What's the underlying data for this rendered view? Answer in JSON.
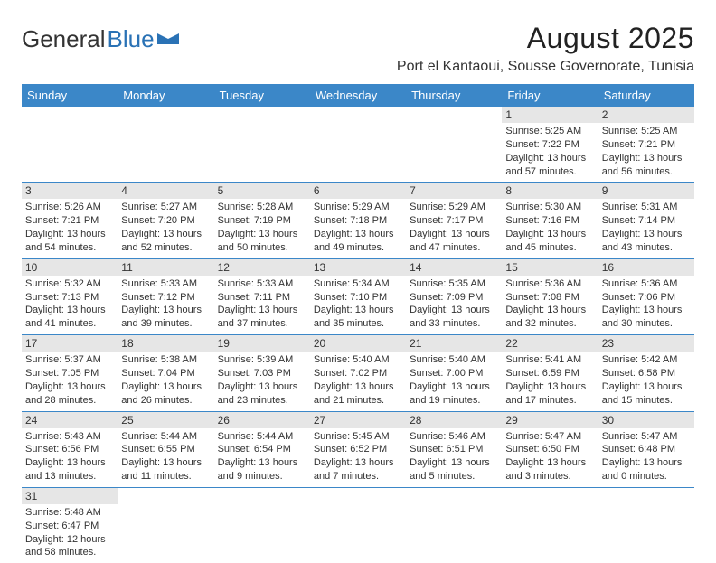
{
  "brand": {
    "part1": "General",
    "part2": "Blue"
  },
  "title": "August 2025",
  "subtitle": "Port el Kantaoui, Sousse Governorate, Tunisia",
  "colors": {
    "header_bg": "#3b87c8",
    "header_fg": "#ffffff",
    "daynum_bg": "#e6e6e6",
    "rule": "#3b87c8",
    "text": "#333333",
    "brand_blue": "#2a72b5"
  },
  "dayHeaders": [
    "Sunday",
    "Monday",
    "Tuesday",
    "Wednesday",
    "Thursday",
    "Friday",
    "Saturday"
  ],
  "weeks": [
    [
      {
        "n": "",
        "sunrise": "",
        "sunset": "",
        "daylight": ""
      },
      {
        "n": "",
        "sunrise": "",
        "sunset": "",
        "daylight": ""
      },
      {
        "n": "",
        "sunrise": "",
        "sunset": "",
        "daylight": ""
      },
      {
        "n": "",
        "sunrise": "",
        "sunset": "",
        "daylight": ""
      },
      {
        "n": "",
        "sunrise": "",
        "sunset": "",
        "daylight": ""
      },
      {
        "n": "1",
        "sunrise": "Sunrise: 5:25 AM",
        "sunset": "Sunset: 7:22 PM",
        "daylight": "Daylight: 13 hours and 57 minutes."
      },
      {
        "n": "2",
        "sunrise": "Sunrise: 5:25 AM",
        "sunset": "Sunset: 7:21 PM",
        "daylight": "Daylight: 13 hours and 56 minutes."
      }
    ],
    [
      {
        "n": "3",
        "sunrise": "Sunrise: 5:26 AM",
        "sunset": "Sunset: 7:21 PM",
        "daylight": "Daylight: 13 hours and 54 minutes."
      },
      {
        "n": "4",
        "sunrise": "Sunrise: 5:27 AM",
        "sunset": "Sunset: 7:20 PM",
        "daylight": "Daylight: 13 hours and 52 minutes."
      },
      {
        "n": "5",
        "sunrise": "Sunrise: 5:28 AM",
        "sunset": "Sunset: 7:19 PM",
        "daylight": "Daylight: 13 hours and 50 minutes."
      },
      {
        "n": "6",
        "sunrise": "Sunrise: 5:29 AM",
        "sunset": "Sunset: 7:18 PM",
        "daylight": "Daylight: 13 hours and 49 minutes."
      },
      {
        "n": "7",
        "sunrise": "Sunrise: 5:29 AM",
        "sunset": "Sunset: 7:17 PM",
        "daylight": "Daylight: 13 hours and 47 minutes."
      },
      {
        "n": "8",
        "sunrise": "Sunrise: 5:30 AM",
        "sunset": "Sunset: 7:16 PM",
        "daylight": "Daylight: 13 hours and 45 minutes."
      },
      {
        "n": "9",
        "sunrise": "Sunrise: 5:31 AM",
        "sunset": "Sunset: 7:14 PM",
        "daylight": "Daylight: 13 hours and 43 minutes."
      }
    ],
    [
      {
        "n": "10",
        "sunrise": "Sunrise: 5:32 AM",
        "sunset": "Sunset: 7:13 PM",
        "daylight": "Daylight: 13 hours and 41 minutes."
      },
      {
        "n": "11",
        "sunrise": "Sunrise: 5:33 AM",
        "sunset": "Sunset: 7:12 PM",
        "daylight": "Daylight: 13 hours and 39 minutes."
      },
      {
        "n": "12",
        "sunrise": "Sunrise: 5:33 AM",
        "sunset": "Sunset: 7:11 PM",
        "daylight": "Daylight: 13 hours and 37 minutes."
      },
      {
        "n": "13",
        "sunrise": "Sunrise: 5:34 AM",
        "sunset": "Sunset: 7:10 PM",
        "daylight": "Daylight: 13 hours and 35 minutes."
      },
      {
        "n": "14",
        "sunrise": "Sunrise: 5:35 AM",
        "sunset": "Sunset: 7:09 PM",
        "daylight": "Daylight: 13 hours and 33 minutes."
      },
      {
        "n": "15",
        "sunrise": "Sunrise: 5:36 AM",
        "sunset": "Sunset: 7:08 PM",
        "daylight": "Daylight: 13 hours and 32 minutes."
      },
      {
        "n": "16",
        "sunrise": "Sunrise: 5:36 AM",
        "sunset": "Sunset: 7:06 PM",
        "daylight": "Daylight: 13 hours and 30 minutes."
      }
    ],
    [
      {
        "n": "17",
        "sunrise": "Sunrise: 5:37 AM",
        "sunset": "Sunset: 7:05 PM",
        "daylight": "Daylight: 13 hours and 28 minutes."
      },
      {
        "n": "18",
        "sunrise": "Sunrise: 5:38 AM",
        "sunset": "Sunset: 7:04 PM",
        "daylight": "Daylight: 13 hours and 26 minutes."
      },
      {
        "n": "19",
        "sunrise": "Sunrise: 5:39 AM",
        "sunset": "Sunset: 7:03 PM",
        "daylight": "Daylight: 13 hours and 23 minutes."
      },
      {
        "n": "20",
        "sunrise": "Sunrise: 5:40 AM",
        "sunset": "Sunset: 7:02 PM",
        "daylight": "Daylight: 13 hours and 21 minutes."
      },
      {
        "n": "21",
        "sunrise": "Sunrise: 5:40 AM",
        "sunset": "Sunset: 7:00 PM",
        "daylight": "Daylight: 13 hours and 19 minutes."
      },
      {
        "n": "22",
        "sunrise": "Sunrise: 5:41 AM",
        "sunset": "Sunset: 6:59 PM",
        "daylight": "Daylight: 13 hours and 17 minutes."
      },
      {
        "n": "23",
        "sunrise": "Sunrise: 5:42 AM",
        "sunset": "Sunset: 6:58 PM",
        "daylight": "Daylight: 13 hours and 15 minutes."
      }
    ],
    [
      {
        "n": "24",
        "sunrise": "Sunrise: 5:43 AM",
        "sunset": "Sunset: 6:56 PM",
        "daylight": "Daylight: 13 hours and 13 minutes."
      },
      {
        "n": "25",
        "sunrise": "Sunrise: 5:44 AM",
        "sunset": "Sunset: 6:55 PM",
        "daylight": "Daylight: 13 hours and 11 minutes."
      },
      {
        "n": "26",
        "sunrise": "Sunrise: 5:44 AM",
        "sunset": "Sunset: 6:54 PM",
        "daylight": "Daylight: 13 hours and 9 minutes."
      },
      {
        "n": "27",
        "sunrise": "Sunrise: 5:45 AM",
        "sunset": "Sunset: 6:52 PM",
        "daylight": "Daylight: 13 hours and 7 minutes."
      },
      {
        "n": "28",
        "sunrise": "Sunrise: 5:46 AM",
        "sunset": "Sunset: 6:51 PM",
        "daylight": "Daylight: 13 hours and 5 minutes."
      },
      {
        "n": "29",
        "sunrise": "Sunrise: 5:47 AM",
        "sunset": "Sunset: 6:50 PM",
        "daylight": "Daylight: 13 hours and 3 minutes."
      },
      {
        "n": "30",
        "sunrise": "Sunrise: 5:47 AM",
        "sunset": "Sunset: 6:48 PM",
        "daylight": "Daylight: 13 hours and 0 minutes."
      }
    ],
    [
      {
        "n": "31",
        "sunrise": "Sunrise: 5:48 AM",
        "sunset": "Sunset: 6:47 PM",
        "daylight": "Daylight: 12 hours and 58 minutes."
      },
      {
        "n": "",
        "sunrise": "",
        "sunset": "",
        "daylight": ""
      },
      {
        "n": "",
        "sunrise": "",
        "sunset": "",
        "daylight": ""
      },
      {
        "n": "",
        "sunrise": "",
        "sunset": "",
        "daylight": ""
      },
      {
        "n": "",
        "sunrise": "",
        "sunset": "",
        "daylight": ""
      },
      {
        "n": "",
        "sunrise": "",
        "sunset": "",
        "daylight": ""
      },
      {
        "n": "",
        "sunrise": "",
        "sunset": "",
        "daylight": ""
      }
    ]
  ]
}
